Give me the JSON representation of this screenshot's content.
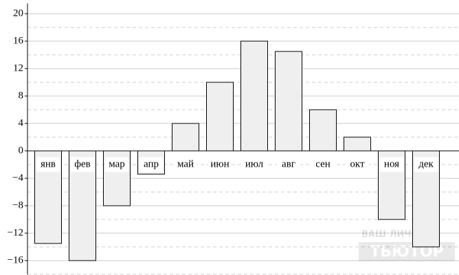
{
  "chart_data": {
    "type": "bar",
    "categories": [
      "янв",
      "фев",
      "мар",
      "апр",
      "май",
      "июн",
      "июл",
      "авг",
      "сен",
      "окт",
      "ноя",
      "дек"
    ],
    "values": [
      -13.5,
      -16,
      -8,
      -3.4,
      4,
      10,
      16,
      14.5,
      6,
      2,
      -10,
      -14
    ],
    "color": "#efefef",
    "ylim": [
      -18,
      21.5
    ],
    "yticks": [
      {
        "value": -16,
        "label": "−16"
      },
      {
        "value": -12,
        "label": "−12"
      },
      {
        "value": -8,
        "label": "−8"
      },
      {
        "value": -4,
        "label": "−4"
      },
      0,
      4,
      8,
      12,
      16,
      20
    ],
    "minor_yticks": [
      -18,
      -14,
      -10,
      -6,
      -2,
      2,
      6,
      10,
      14,
      18
    ],
    "grid": true,
    "watermark": [
      "ВАШ ЛИЧНЫЙ",
      "ТЬЮТОР"
    ]
  }
}
